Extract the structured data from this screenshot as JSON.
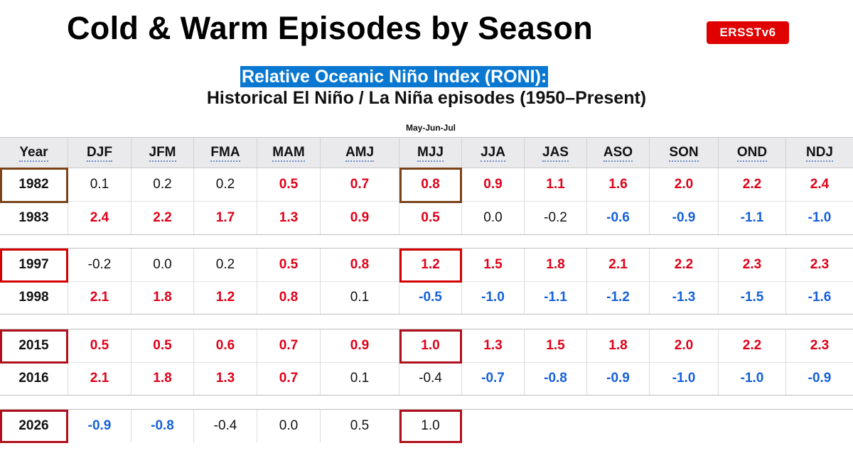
{
  "title": "Cold & Warm Episodes by Season",
  "badge": "ERSSTv6",
  "subtitle_highlight": "Relative Oceanic Niño Index (RONI):",
  "subtitle": "Historical El Niño / La Niña episodes (1950–Present)",
  "column_note": "May-Jun-Jul",
  "colors": {
    "warm": "#e00018",
    "cold": "#1560d8",
    "neutral": "#111111",
    "badge": "#e00000",
    "highlight_bg": "#0a78d0"
  },
  "headers": [
    "Year",
    "DJF",
    "JFM",
    "FMA",
    "MAM",
    "AMJ",
    "MJJ",
    "JJA",
    "JAS",
    "ASO",
    "SON",
    "OND",
    "NDJ"
  ],
  "rows": [
    {
      "year": "1982",
      "values": [
        "0.1",
        "0.2",
        "0.2",
        "0.5",
        "0.7",
        "0.8",
        "0.9",
        "1.1",
        "1.6",
        "2.0",
        "2.2",
        "2.4"
      ],
      "states": [
        "n",
        "n",
        "n",
        "w",
        "w",
        "w",
        "w",
        "w",
        "w",
        "w",
        "w",
        "w"
      ]
    },
    {
      "year": "1983",
      "values": [
        "2.4",
        "2.2",
        "1.7",
        "1.3",
        "0.9",
        "0.5",
        "0.0",
        "-0.2",
        "-0.6",
        "-0.9",
        "-1.1",
        "-1.0"
      ],
      "states": [
        "w",
        "w",
        "w",
        "w",
        "w",
        "w",
        "n",
        "n",
        "c",
        "c",
        "c",
        "c"
      ]
    },
    {
      "year": "1997",
      "values": [
        "-0.2",
        "0.0",
        "0.2",
        "0.5",
        "0.8",
        "1.2",
        "1.5",
        "1.8",
        "2.1",
        "2.2",
        "2.3",
        "2.3"
      ],
      "states": [
        "n",
        "n",
        "n",
        "w",
        "w",
        "w",
        "w",
        "w",
        "w",
        "w",
        "w",
        "w"
      ]
    },
    {
      "year": "1998",
      "values": [
        "2.1",
        "1.8",
        "1.2",
        "0.8",
        "0.1",
        "-0.5",
        "-1.0",
        "-1.1",
        "-1.2",
        "-1.3",
        "-1.5",
        "-1.6"
      ],
      "states": [
        "w",
        "w",
        "w",
        "w",
        "n",
        "c",
        "c",
        "c",
        "c",
        "c",
        "c",
        "c"
      ]
    },
    {
      "year": "2015",
      "values": [
        "0.5",
        "0.5",
        "0.6",
        "0.7",
        "0.9",
        "1.0",
        "1.3",
        "1.5",
        "1.8",
        "2.0",
        "2.2",
        "2.3"
      ],
      "states": [
        "w",
        "w",
        "w",
        "w",
        "w",
        "w",
        "w",
        "w",
        "w",
        "w",
        "w",
        "w"
      ]
    },
    {
      "year": "2016",
      "values": [
        "2.1",
        "1.8",
        "1.3",
        "0.7",
        "0.1",
        "-0.4",
        "-0.7",
        "-0.8",
        "-0.9",
        "-1.0",
        "-1.0",
        "-0.9"
      ],
      "states": [
        "w",
        "w",
        "w",
        "w",
        "n",
        "n",
        "c",
        "c",
        "c",
        "c",
        "c",
        "c"
      ]
    },
    {
      "year": "2026",
      "values": [
        "-0.9",
        "-0.8",
        "-0.4",
        "0.0",
        "0.5",
        "1.0"
      ],
      "states": [
        "c",
        "c",
        "n",
        "n",
        "n",
        "n"
      ]
    }
  ]
}
